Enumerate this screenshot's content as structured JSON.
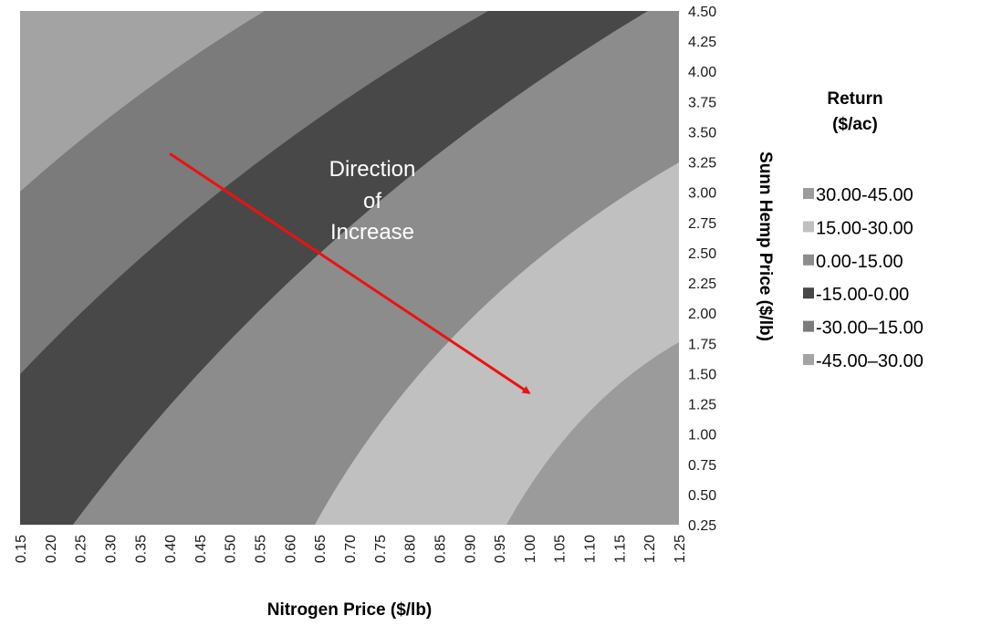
{
  "chart_data": {
    "type": "heatmap",
    "title": "",
    "xlabel": "Nitrogen Price ($/lb)",
    "ylabel": "Sunn Hemp Price ($/lb)",
    "xlim": [
      0.15,
      1.25
    ],
    "ylim": [
      0.25,
      4.5
    ],
    "x_ticks": [
      "0.15",
      "0.20",
      "0.25",
      "0.30",
      "0.35",
      "0.40",
      "0.45",
      "0.50",
      "0.55",
      "0.60",
      "0.65",
      "0.70",
      "0.75",
      "0.80",
      "0.85",
      "0.90",
      "0.95",
      "1.00",
      "1.05",
      "1.10",
      "1.15",
      "1.20",
      "1.25"
    ],
    "y_ticks": [
      "4.50",
      "4.25",
      "4.00",
      "3.75",
      "3.50",
      "3.25",
      "3.00",
      "2.75",
      "2.50",
      "2.25",
      "2.00",
      "1.75",
      "1.50",
      "1.25",
      "1.00",
      "0.75",
      "0.50",
      "0.25"
    ],
    "legend_title": [
      "Return",
      "($/ac)"
    ],
    "bands": [
      {
        "label": "30.00-45.00",
        "color": "#9b9b9b"
      },
      {
        "label": "15.00-30.00",
        "color": "#c0c0c0"
      },
      {
        "label": "0.00-15.00",
        "color": "#8c8c8c"
      },
      {
        "label": "-15.00-0.00",
        "color": "#484848"
      },
      {
        "label": "-30.00–15.00",
        "color": "#7b7b7b"
      },
      {
        "label": "-45.00–30.00",
        "color": "#a3a3a3"
      }
    ],
    "annotation": {
      "lines": [
        "Direction",
        "of",
        "Increase"
      ],
      "arrow_from": [
        0.4,
        3.32
      ],
      "arrow_to": [
        1.0,
        1.34
      ],
      "arrow_color": "#ee1111"
    }
  }
}
